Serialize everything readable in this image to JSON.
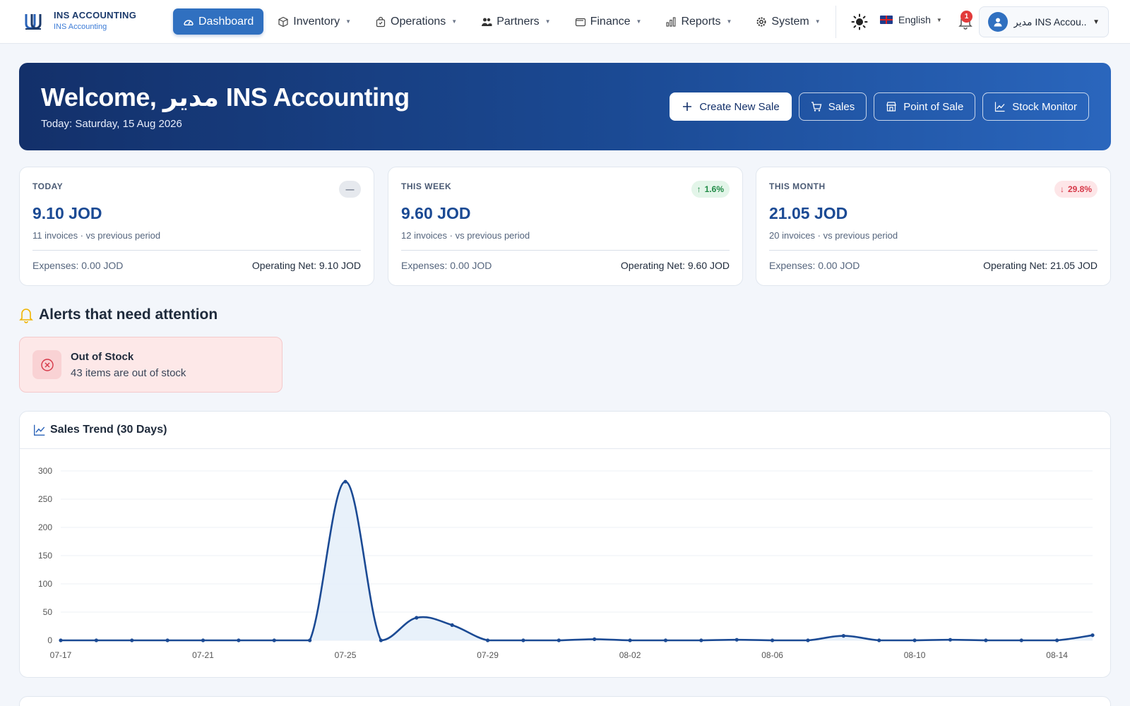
{
  "brand": {
    "title": "INS ACCOUNTING",
    "subtitle": "INS Accounting"
  },
  "nav": {
    "items": [
      {
        "label": "Dashboard",
        "icon": "gauge-icon",
        "active": true
      },
      {
        "label": "Inventory",
        "icon": "box-icon"
      },
      {
        "label": "Operations",
        "icon": "bag-icon"
      },
      {
        "label": "Partners",
        "icon": "users-icon"
      },
      {
        "label": "Finance",
        "icon": "wallet-icon"
      },
      {
        "label": "Reports",
        "icon": "bar-chart-icon"
      },
      {
        "label": "System",
        "icon": "gear-icon"
      }
    ],
    "language": "English",
    "notifications_count": "1",
    "user_name": "مدير INS Accou..."
  },
  "hero": {
    "title": "Welcome, مدير INS Accounting",
    "date": "Today: Saturday, 15 Aug 2026",
    "actions": {
      "create_sale": "Create New Sale",
      "sales": "Sales",
      "pos": "Point of Sale",
      "stock_monitor": "Stock Monitor"
    }
  },
  "kpis": [
    {
      "label": "TODAY",
      "value": "9.10 JOD",
      "sub": "11 invoices · vs previous period",
      "expenses": "Expenses: 0.00 JOD",
      "net": "Operating Net: 9.10 JOD",
      "badge": "—",
      "badge_type": "neutral"
    },
    {
      "label": "THIS WEEK",
      "value": "9.60 JOD",
      "sub": "12 invoices · vs previous period",
      "expenses": "Expenses: 0.00 JOD",
      "net": "Operating Net: 9.60 JOD",
      "badge": "1.6%",
      "badge_type": "up"
    },
    {
      "label": "THIS MONTH",
      "value": "21.05 JOD",
      "sub": "20 invoices · vs previous period",
      "expenses": "Expenses: 0.00 JOD",
      "net": "Operating Net: 21.05 JOD",
      "badge": "29.8%",
      "badge_type": "down"
    }
  ],
  "alerts": {
    "title": "Alerts that need attention",
    "items": [
      {
        "title": "Out of Stock",
        "text": "43 items are out of stock"
      }
    ]
  },
  "colors": {
    "accent": "#3070c0",
    "hero_dark": "#13306a",
    "line": "#1b4a94",
    "area": "#e4eef9",
    "up": "#1f8a45",
    "down": "#d63848"
  },
  "chart": {
    "title": "Sales Trend (30 Days)"
  },
  "chart_data": {
    "type": "area",
    "x": [
      "07-17",
      "07-18",
      "07-19",
      "07-20",
      "07-21",
      "07-22",
      "07-23",
      "07-24",
      "07-25",
      "07-26",
      "07-27",
      "07-28",
      "07-29",
      "07-30",
      "07-31",
      "08-01",
      "08-02",
      "08-03",
      "08-04",
      "08-05",
      "08-06",
      "08-07",
      "08-08",
      "08-09",
      "08-10",
      "08-11",
      "08-12",
      "08-13",
      "08-14",
      "08-15"
    ],
    "values": [
      0,
      0,
      0,
      0,
      0,
      0,
      0,
      0,
      281,
      0,
      40,
      27,
      0,
      0,
      0,
      2,
      0,
      0,
      0,
      1,
      0,
      0,
      8,
      0,
      0,
      1,
      0,
      0,
      0,
      9.1
    ],
    "x_ticks": [
      "07-17",
      "07-21",
      "07-25",
      "07-29",
      "08-02",
      "08-06",
      "08-10",
      "08-14"
    ],
    "y_ticks": [
      0,
      50,
      100,
      150,
      200,
      250,
      300
    ],
    "ylim": [
      0,
      300
    ],
    "grid": true
  }
}
